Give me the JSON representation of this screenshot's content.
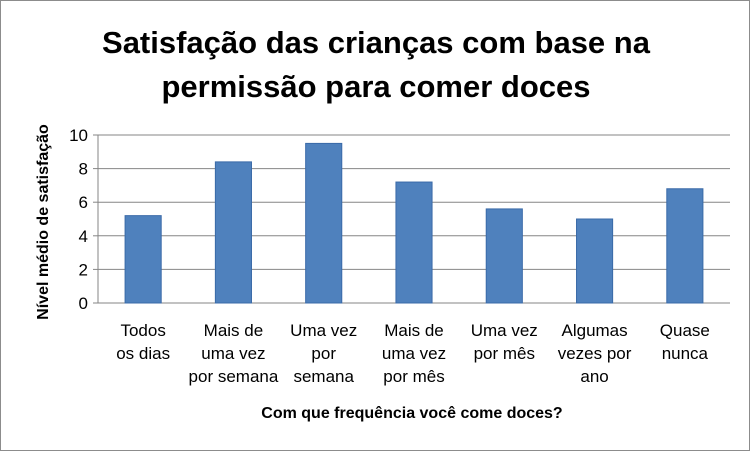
{
  "chart_data": {
    "type": "bar",
    "title_lines": [
      "Satisfação das crianças com base na",
      "permissão para comer doces"
    ],
    "xlabel": "Com que frequência você come doces?",
    "ylabel": "Nível médio de satisfação",
    "categories": [
      [
        "Todos",
        "os dias"
      ],
      [
        "Mais de",
        "uma vez",
        "por semana"
      ],
      [
        "Uma vez",
        "por",
        "semana"
      ],
      [
        "Mais de",
        "uma vez",
        "por mês"
      ],
      [
        "Uma vez",
        "por mês"
      ],
      [
        "Algumas",
        "vezes por",
        "ano"
      ],
      [
        "Quase",
        "nunca"
      ]
    ],
    "values": [
      5.2,
      8.4,
      9.5,
      7.2,
      5.6,
      5.0,
      6.8
    ],
    "ylim": [
      0,
      10
    ],
    "yticks": [
      0,
      2,
      4,
      6,
      8,
      10
    ],
    "grid": true,
    "legend": "none",
    "colors": {
      "bar": "#4f81bd",
      "bar_edge": "#3a6aa8",
      "grid": "#868686",
      "axis": "#868686"
    }
  }
}
